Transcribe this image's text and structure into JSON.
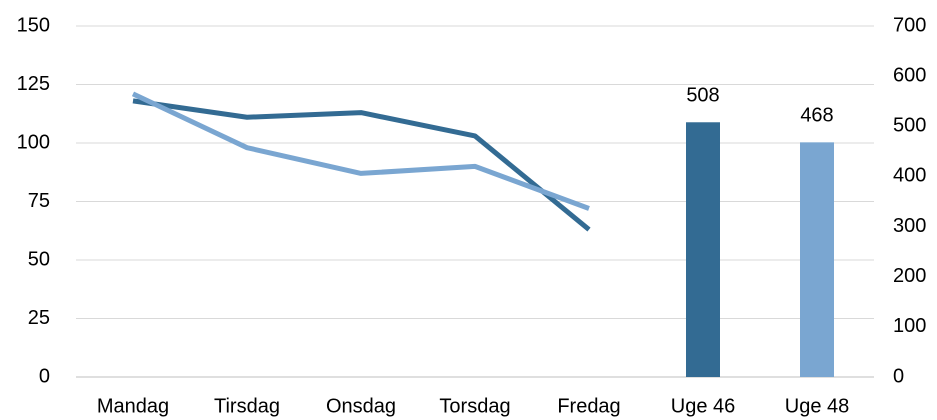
{
  "chart_data": {
    "type": "bar-line",
    "categories": [
      "Mandag",
      "Tirsdag",
      "Onsdag",
      "Torsdag",
      "Fredag",
      "Uge 46",
      "Uge 48"
    ],
    "series": [
      {
        "type": "line",
        "color": "#336b93",
        "values": [
          118,
          111,
          113,
          103,
          63,
          null,
          null
        ]
      },
      {
        "type": "line",
        "color": "#7aa6d1",
        "values": [
          121,
          98,
          87,
          90,
          72,
          null,
          null
        ]
      },
      {
        "type": "bar",
        "axis": "y2",
        "color": "#336b93",
        "values": [
          null,
          null,
          null,
          null,
          null,
          508,
          null
        ]
      },
      {
        "type": "bar",
        "axis": "y2",
        "color": "#7aa6d1",
        "values": [
          null,
          null,
          null,
          null,
          null,
          null,
          468
        ]
      }
    ],
    "ylim": [
      0,
      150
    ],
    "yticks": [
      0,
      25,
      50,
      75,
      100,
      125,
      150
    ],
    "y2lim": [
      0,
      700
    ],
    "y2ticks": [
      0,
      100,
      200,
      300,
      400,
      500,
      600,
      700
    ],
    "grid": true
  }
}
